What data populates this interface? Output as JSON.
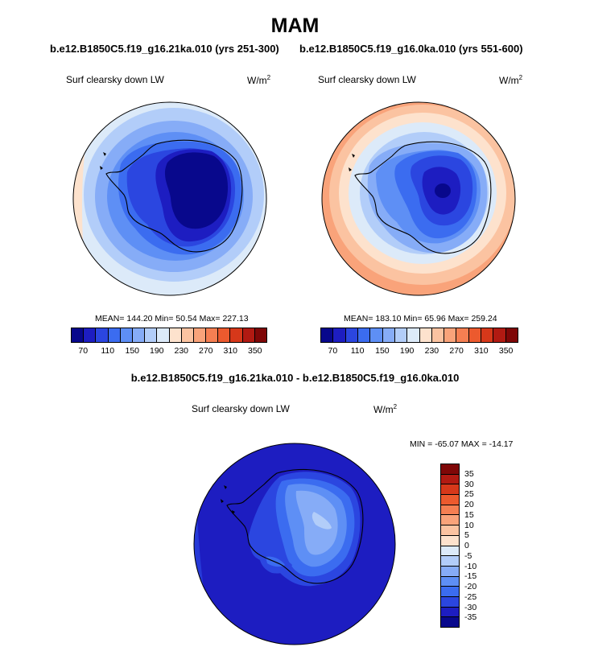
{
  "page": {
    "title": "MAM",
    "diff_title": "b.e12.B1850C5.f19_g16.21ka.010 - b.e12.B1850C5.f19_g16.0ka.010"
  },
  "panels": [
    {
      "subtitle": "b.e12.B1850C5.f19_g16.21ka.010 (yrs 251-300)",
      "label": "Surf clearsky down LW",
      "units": "W/m",
      "units_exp": "2",
      "stats": "MEAN= 144.20  Min=  50.54  Max= 227.13"
    },
    {
      "subtitle": "b.e12.B1850C5.f19_g16.0ka.010 (yrs 551-600)",
      "label": "Surf clearsky down LW",
      "units": "W/m",
      "units_exp": "2",
      "stats": "MEAN= 183.10  Min=  65.96  Max= 259.24"
    }
  ],
  "diff_panel": {
    "label": "Surf clearsky down LW",
    "units": "W/m",
    "units_exp": "2",
    "stats": "MIN = -65.07 MAX = -14.17"
  },
  "colorbar_main": {
    "colors": [
      "#08088c",
      "#1d1dc1",
      "#2b46e0",
      "#3b6cf0",
      "#5e8ff5",
      "#86acf7",
      "#b2cdf9",
      "#dceaf9",
      "#fde2cd",
      "#fbc3a1",
      "#f9a37a",
      "#f57f52",
      "#ec5a2e",
      "#d6381a",
      "#b11a12",
      "#7f0707"
    ],
    "ticks": [
      "70",
      "110",
      "150",
      "190",
      "230",
      "270",
      "310",
      "350"
    ]
  },
  "colorbar_diff": {
    "colors": [
      "#7f0707",
      "#b11a12",
      "#d6381a",
      "#ec5a2e",
      "#f57f52",
      "#f9a37a",
      "#fbc3a1",
      "#fde2cd",
      "#dceaf9",
      "#b2cdf9",
      "#86acf7",
      "#5e8ff5",
      "#3b6cf0",
      "#2b46e0",
      "#1d1dc1",
      "#08088c"
    ],
    "ticks": [
      "35",
      "30",
      "25",
      "20",
      "15",
      "10",
      "5",
      "0",
      "-5",
      "-10",
      "-15",
      "-20",
      "-25",
      "-30",
      "-35"
    ]
  }
}
